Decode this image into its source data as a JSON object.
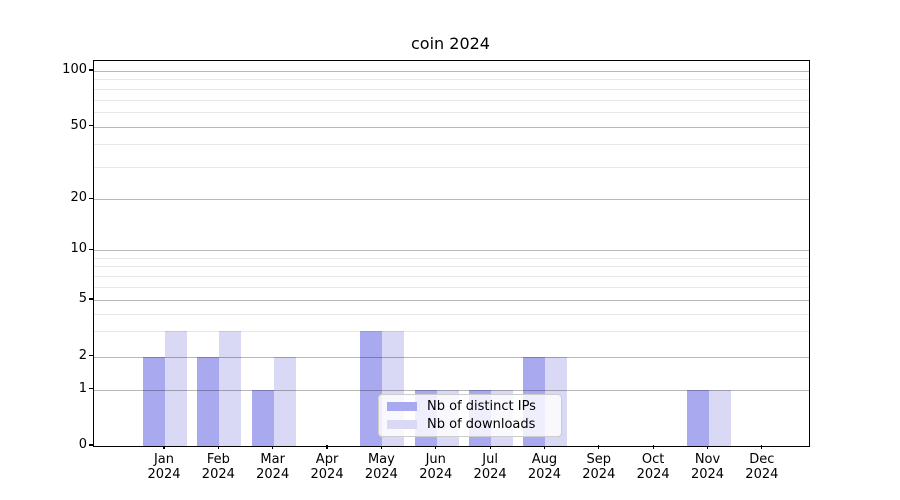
{
  "chart_data": {
    "type": "bar",
    "title": "coin 2024",
    "categories": [
      "Jan",
      "Feb",
      "Mar",
      "Apr",
      "May",
      "Jun",
      "Jul",
      "Aug",
      "Sep",
      "Oct",
      "Nov",
      "Dec"
    ],
    "category_year": "2024",
    "series": [
      {
        "name": "Nb of distinct IPs",
        "color": "#a9a9f0",
        "values": [
          2,
          2,
          1,
          0,
          3,
          1,
          1,
          2,
          0,
          0,
          1,
          0
        ]
      },
      {
        "name": "Nb of downloads",
        "color": "#d9d9f6",
        "values": [
          3,
          3,
          2,
          0,
          3,
          1,
          1,
          2,
          0,
          0,
          1,
          0
        ]
      }
    ],
    "y_axis": {
      "scale": "symlog",
      "major_ticks": [
        0,
        1,
        2,
        5,
        10,
        20,
        50,
        100
      ],
      "major_tick_labels": [
        "0",
        "1",
        "2",
        "5",
        "10",
        "20",
        "50",
        "100"
      ],
      "minor_ticks": [
        3,
        4,
        6,
        7,
        8,
        9,
        30,
        40,
        60,
        70,
        80,
        90
      ],
      "range": [
        0,
        115
      ]
    },
    "grid": true,
    "legend_position": "lower-center"
  },
  "colors": {
    "grid_major": "#b8b8b8",
    "grid_minor": "#e8e8e8",
    "axis": "#000000",
    "legend_border": "#cccccc"
  }
}
